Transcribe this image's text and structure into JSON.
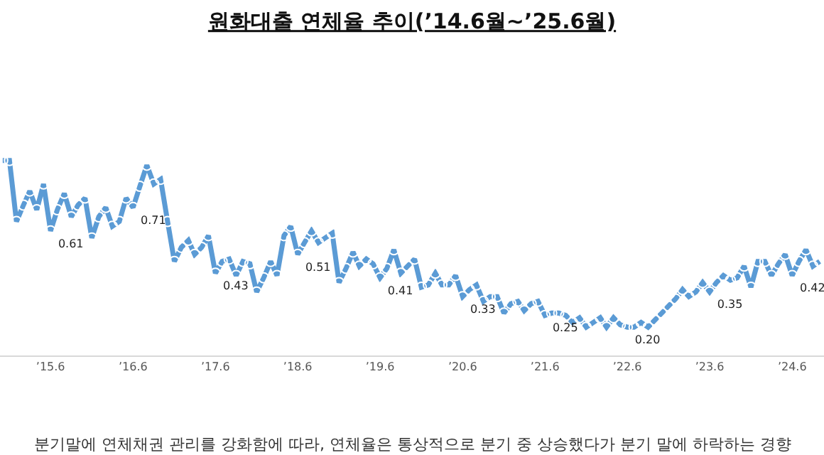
{
  "chart_data": {
    "type": "line",
    "title": "원화대출 연체율 추이(’14.6월~’25.6월)",
    "x": [
      "2014-11",
      "2014-12",
      "2015-01",
      "2015-02",
      "2015-03",
      "2015-04",
      "2015-05",
      "2015-06",
      "2015-07",
      "2015-08",
      "2015-09",
      "2015-10",
      "2015-11",
      "2015-12",
      "2016-01",
      "2016-02",
      "2016-03",
      "2016-04",
      "2016-05",
      "2016-06",
      "2016-07",
      "2016-08",
      "2016-09",
      "2016-10",
      "2016-11",
      "2016-12",
      "2017-01",
      "2017-02",
      "2017-03",
      "2017-04",
      "2017-05",
      "2017-06",
      "2017-07",
      "2017-08",
      "2017-09",
      "2017-10",
      "2017-11",
      "2017-12",
      "2018-01",
      "2018-02",
      "2018-03",
      "2018-04",
      "2018-05",
      "2018-06",
      "2018-07",
      "2018-08",
      "2018-09",
      "2018-10",
      "2018-11",
      "2018-12",
      "2019-01",
      "2019-02",
      "2019-03",
      "2019-04",
      "2019-05",
      "2019-06",
      "2019-07",
      "2019-08",
      "2019-09",
      "2019-10",
      "2019-11",
      "2019-12",
      "2020-01",
      "2020-02",
      "2020-03",
      "2020-04",
      "2020-05",
      "2020-06",
      "2020-07",
      "2020-08",
      "2020-09",
      "2020-10",
      "2020-11",
      "2020-12",
      "2021-01",
      "2021-02",
      "2021-03",
      "2021-04",
      "2021-05",
      "2021-06",
      "2021-07",
      "2021-08",
      "2021-09",
      "2021-10",
      "2021-11",
      "2021-12",
      "2022-01",
      "2022-02",
      "2022-03",
      "2022-04",
      "2022-05",
      "2022-06",
      "2022-07",
      "2022-08",
      "2022-09",
      "2022-10",
      "2022-11",
      "2022-12",
      "2023-01",
      "2023-02",
      "2023-03",
      "2023-04",
      "2023-05",
      "2023-06",
      "2023-07",
      "2023-08",
      "2023-09",
      "2023-10",
      "2023-11",
      "2023-12",
      "2024-01",
      "2024-02",
      "2024-03",
      "2024-04",
      "2024-05",
      "2024-06",
      "2024-07",
      "2024-08",
      "2024-09",
      "2024-10"
    ],
    "series": [
      {
        "color": "#5b9bd5",
        "values": [
          0.91,
          0.91,
          0.65,
          0.72,
          0.78,
          0.7,
          0.81,
          0.61,
          0.7,
          0.77,
          0.67,
          0.72,
          0.75,
          0.58,
          0.67,
          0.71,
          0.63,
          0.65,
          0.75,
          0.71,
          0.8,
          0.89,
          0.81,
          0.83,
          0.65,
          0.48,
          0.54,
          0.57,
          0.51,
          0.54,
          0.59,
          0.43,
          0.48,
          0.49,
          0.42,
          0.48,
          0.47,
          0.35,
          0.41,
          0.48,
          0.42,
          0.59,
          0.63,
          0.51,
          0.56,
          0.61,
          0.56,
          0.58,
          0.6,
          0.39,
          0.45,
          0.52,
          0.46,
          0.49,
          0.47,
          0.41,
          0.45,
          0.53,
          0.43,
          0.46,
          0.49,
          0.37,
          0.38,
          0.43,
          0.38,
          0.38,
          0.42,
          0.33,
          0.36,
          0.38,
          0.31,
          0.33,
          0.33,
          0.26,
          0.3,
          0.31,
          0.27,
          0.3,
          0.31,
          0.25,
          0.26,
          0.26,
          0.25,
          0.22,
          0.24,
          0.2,
          0.22,
          0.24,
          0.2,
          0.24,
          0.21,
          0.2,
          0.2,
          0.22,
          0.2,
          0.23,
          0.26,
          0.29,
          0.32,
          0.36,
          0.33,
          0.35,
          0.39,
          0.35,
          0.39,
          0.42,
          0.4,
          0.41,
          0.46,
          0.37,
          0.48,
          0.48,
          0.42,
          0.47,
          0.51,
          0.42,
          0.48,
          0.53,
          0.46,
          0.48
        ],
        "value_labels": [
          null,
          null,
          null,
          null,
          null,
          null,
          null,
          "0.61",
          null,
          null,
          null,
          null,
          null,
          null,
          null,
          null,
          null,
          null,
          null,
          "0.71",
          null,
          null,
          null,
          null,
          null,
          null,
          null,
          null,
          null,
          null,
          null,
          "0.43",
          null,
          null,
          null,
          null,
          null,
          null,
          null,
          null,
          null,
          null,
          null,
          "0.51",
          null,
          null,
          null,
          null,
          null,
          null,
          null,
          null,
          null,
          null,
          null,
          "0.41",
          null,
          null,
          null,
          null,
          null,
          null,
          null,
          null,
          null,
          null,
          null,
          "0.33",
          null,
          null,
          null,
          null,
          null,
          null,
          null,
          null,
          null,
          null,
          null,
          "0.25",
          null,
          null,
          null,
          null,
          null,
          null,
          null,
          null,
          null,
          null,
          null,
          "0.20",
          null,
          null,
          null,
          null,
          null,
          null,
          null,
          null,
          null,
          null,
          null,
          "0.35",
          null,
          null,
          null,
          null,
          null,
          null,
          null,
          null,
          null,
          null,
          null,
          "0.42",
          null,
          null,
          null,
          null
        ]
      }
    ],
    "xlim": [
      "2014-10-20",
      "2024-10-20"
    ],
    "xticks": [
      {
        "value": "2015-06",
        "label": "’15.6"
      },
      {
        "value": "2016-06",
        "label": "’16.6"
      },
      {
        "value": "2017-06",
        "label": "’17.6"
      },
      {
        "value": "2018-06",
        "label": "’18.6"
      },
      {
        "value": "2019-06",
        "label": "’19.6"
      },
      {
        "value": "2020-06",
        "label": "’20.6"
      },
      {
        "value": "2021-06",
        "label": "’21.6"
      },
      {
        "value": "2022-06",
        "label": "’22.6"
      },
      {
        "value": "2023-06",
        "label": "’23.6"
      },
      {
        "value": "2024-06",
        "label": "’24.6"
      }
    ],
    "tick_labels": "x",
    "marker": "circle",
    "line_style": "solid",
    "annotations": [
      "분기말에 연체채권 관리를 강화함에 따라, 연체율은 통상적으로 분기 중 상승했다가 분기 말에 하락하는 경향"
    ]
  }
}
